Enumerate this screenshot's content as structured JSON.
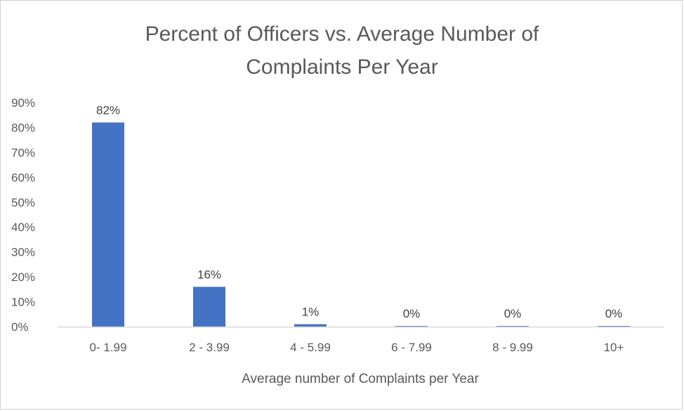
{
  "chart_data": {
    "type": "bar",
    "title_lines": [
      "Percent of Officers vs. Average Number of",
      "Complaints Per Year"
    ],
    "xlabel": "Average number  of Complaints per Year",
    "ylabel": "",
    "categories": [
      "0- 1.99",
      "2 - 3.99",
      "4 - 5.99",
      "6 - 7.99",
      "8 - 9.99",
      "10+"
    ],
    "values": [
      82,
      16,
      1,
      0.3,
      0.3,
      0.3
    ],
    "data_labels": [
      "82%",
      "16%",
      "1%",
      "0%",
      "0%",
      "0%"
    ],
    "y_ticks": [
      0,
      10,
      20,
      30,
      40,
      50,
      60,
      70,
      80,
      90
    ],
    "y_tick_labels": [
      "0%",
      "10%",
      "20%",
      "30%",
      "40%",
      "50%",
      "60%",
      "70%",
      "80%",
      "90%"
    ],
    "ylim": [
      0,
      90
    ],
    "grid": false,
    "legend": "none",
    "bar_color": "#4472C4",
    "axis_color": "#d9d9d9"
  }
}
